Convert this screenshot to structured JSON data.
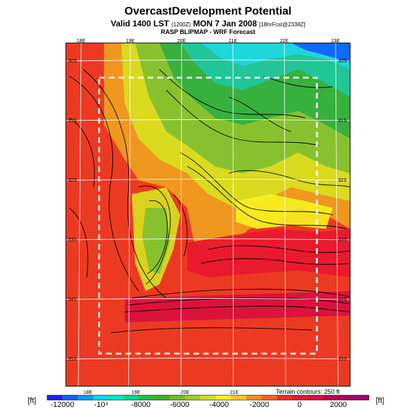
{
  "header": {
    "title": "OvercastDevelopment Potential",
    "subtitle_main": "Valid 1400 LST",
    "subtitle_small1": "(1200Z)",
    "subtitle_main2": "MON 7 Jan 2008",
    "subtitle_small2": "[18hrFcst@2338Z]",
    "subtitle2": "RASP BLIPMAP - WRF Forecast"
  },
  "map": {
    "top_lon_labels": [
      "18E",
      "19E",
      "20E",
      "21E",
      "22E",
      "23E"
    ],
    "bottom_lon_labels": [
      "18E",
      "19E",
      "20E",
      "21E"
    ],
    "left_lat_labels": [
      "30S",
      "31S",
      "32S",
      "33S",
      "34S",
      "35S"
    ],
    "right_lat_labels": [
      "30S",
      "31S",
      "32S",
      "33S",
      "34S",
      "35S"
    ],
    "terrain_note": "Terrain contours: 250 ft"
  },
  "colorbar": {
    "unit_left": "[ft]",
    "unit_right": "[ft]",
    "labels": [
      "-12000",
      "-10⁴",
      "-8000",
      "-6000",
      "-4000",
      "-2000",
      "0",
      "2000"
    ],
    "colors": [
      "#2020ff",
      "#1060ff",
      "#00a0ff",
      "#00d8ff",
      "#00e8c8",
      "#00d890",
      "#20c040",
      "#40b020",
      "#70c020",
      "#a0d020",
      "#d0e020",
      "#f8f020",
      "#f8c820",
      "#f89020",
      "#f86020",
      "#f03020",
      "#e81830",
      "#d81040",
      "#c00050",
      "#b00060",
      "#a00070"
    ]
  }
}
